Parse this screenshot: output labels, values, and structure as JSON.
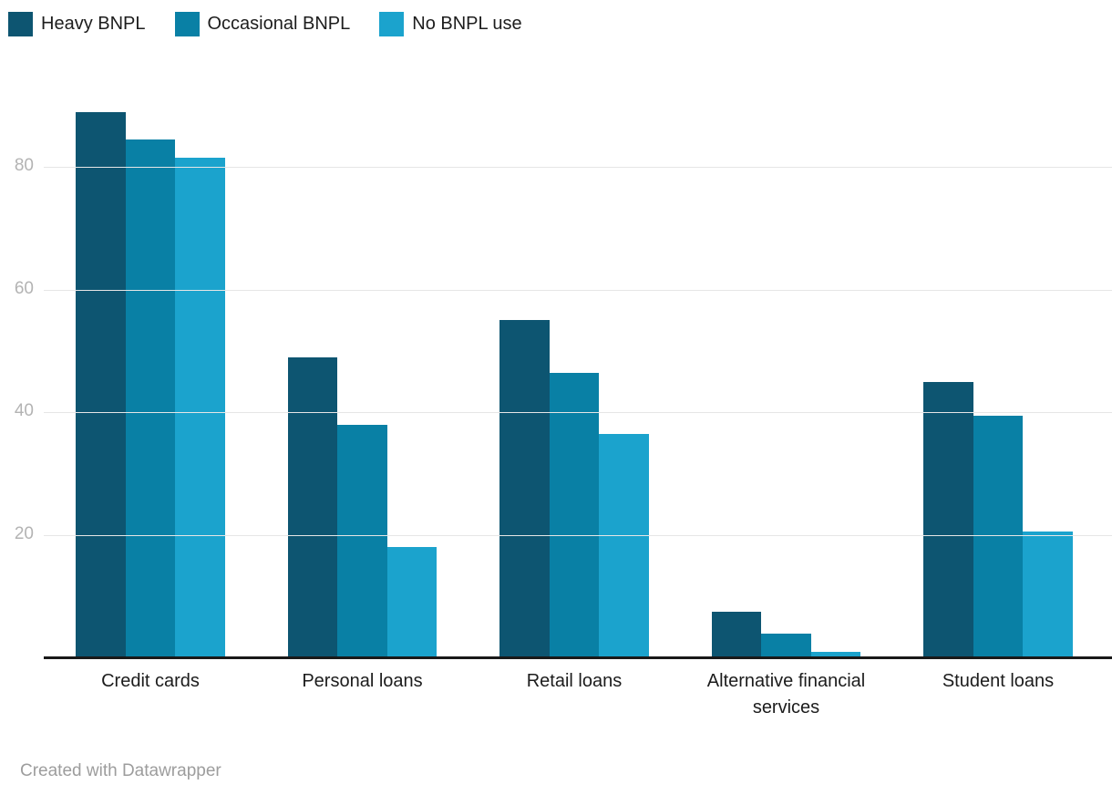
{
  "chart_data": {
    "type": "bar",
    "title": "",
    "xlabel": "",
    "ylabel": "",
    "categories": [
      "Credit cards",
      "Personal loans",
      "Retail loans",
      "Alternative financial services",
      "Student loans"
    ],
    "series": [
      {
        "name": "Heavy BNPL",
        "color": "#0d5571",
        "values": [
          89,
          49,
          55,
          7.5,
          45
        ]
      },
      {
        "name": "Occasional BNPL",
        "color": "#0980a5",
        "values": [
          84.5,
          38,
          46.5,
          3.8,
          39.5
        ]
      },
      {
        "name": "No BNPL use",
        "color": "#1ba3cd",
        "values": [
          81.5,
          18,
          36.5,
          0.9,
          20.5
        ]
      }
    ],
    "yticks": [
      20,
      40,
      60,
      80
    ],
    "ylim": [
      0,
      92
    ],
    "grid": "horizontal",
    "legend_position": "top-left",
    "colors": {
      "gridline": "#e6e6e6",
      "axis_line": "#191919",
      "tick_label": "#b3b3b3",
      "category_label": "#1c1c1c",
      "legend_label": "#1d1d1d",
      "attribution": "#9d9d9d"
    }
  },
  "footer": {
    "attribution": "Created with Datawrapper"
  }
}
